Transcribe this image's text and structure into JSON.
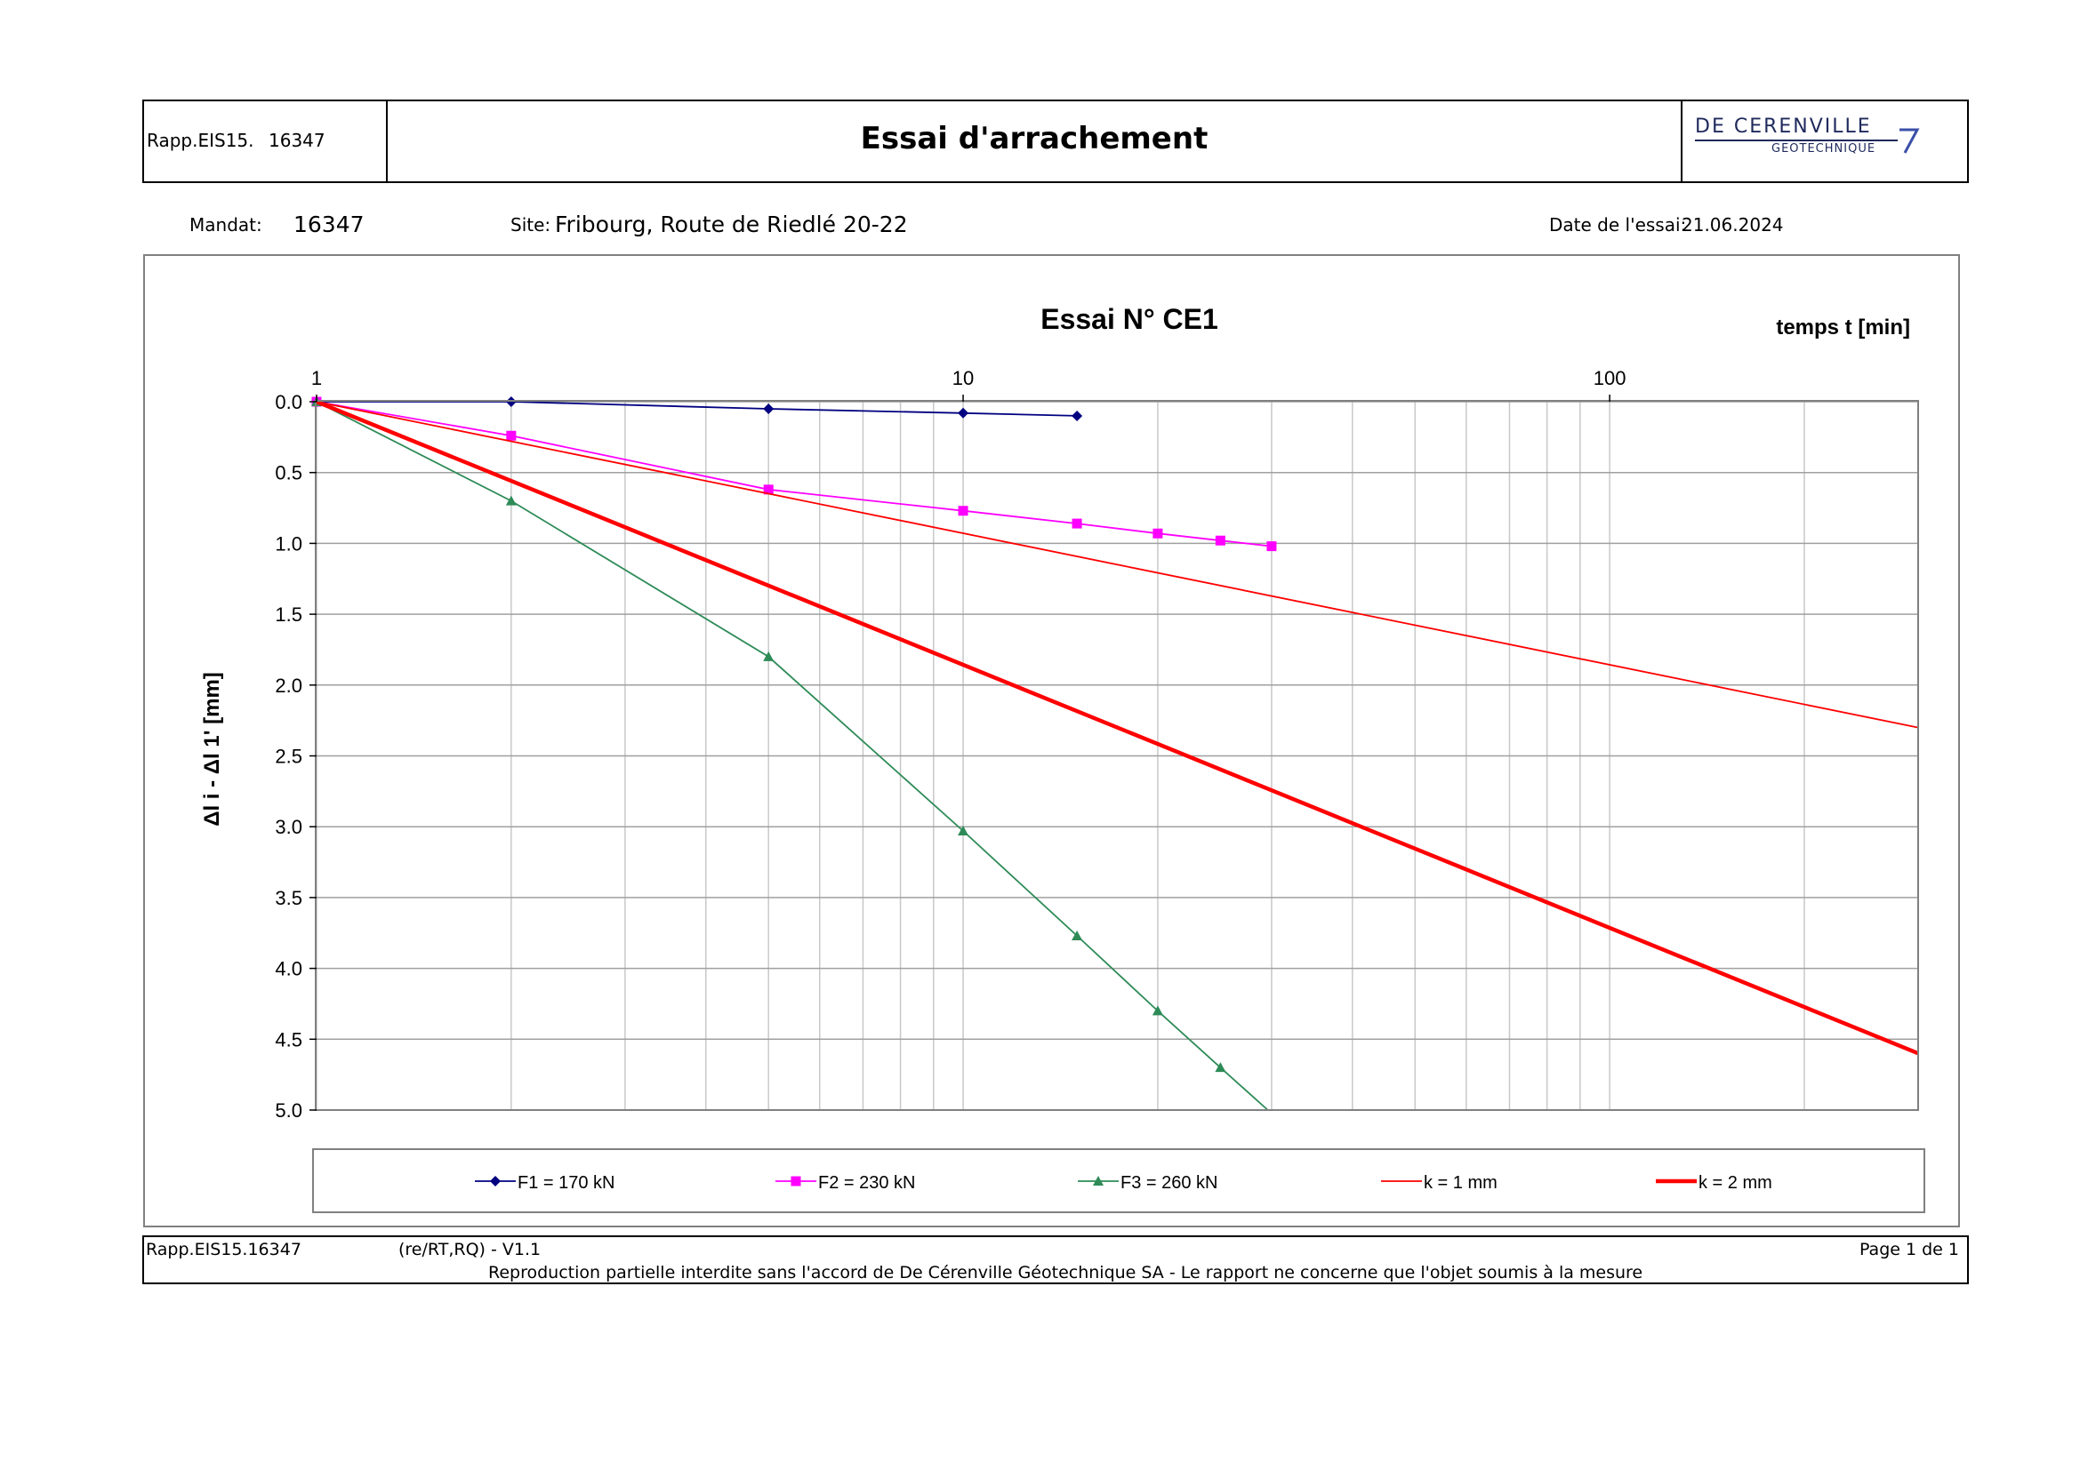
{
  "header": {
    "report_label": "Rapp.EIS15.",
    "report_number": "16347",
    "title": "Essai d'arrachement",
    "logo_line1": "DE CERENVILLE",
    "logo_line2": "GEOTECHNIQUE"
  },
  "info": {
    "mandat_label": "Mandat:",
    "mandat_value": "16347",
    "site_label": "Site:",
    "site_value": "Fribourg, Route de Riedlé 20-22",
    "date_label": "Date de l'essai:",
    "date_value": "21.06.2024"
  },
  "footer": {
    "report_id": "Rapp.EIS15.16347",
    "version": "(re/RT,RQ) - V1.1",
    "page": "Page 1 de 1",
    "disclaimer": "Reproduction partielle interdite sans l'accord de De Cérenville Géotechnique SA - Le rapport ne concerne que l'objet soumis à la mesure"
  },
  "chart_data": {
    "type": "line",
    "title": "Essai N° CE1",
    "xlabel": "temps t [min]",
    "ylabel": "Δl i - Δl 1' [mm]",
    "x_scale": "log",
    "xlim": [
      1,
      300
    ],
    "ylim": [
      0,
      5
    ],
    "y_inverted": true,
    "x_axis_position": "top",
    "x_tick_labels": [
      "1",
      "10",
      "100"
    ],
    "y_tick_labels": [
      "0.0",
      "0.5",
      "1.0",
      "1.5",
      "2.0",
      "2.5",
      "3.0",
      "3.5",
      "4.0",
      "4.5",
      "5.0"
    ],
    "grid": true,
    "legend_position": "bottom",
    "series": [
      {
        "name": "F1 = 170 kN",
        "color": "#000080",
        "marker": "diamond",
        "line_width": "thin",
        "x": [
          1,
          2,
          5,
          10,
          15
        ],
        "y": [
          0.0,
          0.0,
          0.05,
          0.08,
          0.1
        ]
      },
      {
        "name": "F2 = 230 kN",
        "color": "#FF00FF",
        "marker": "square",
        "line_width": "thin",
        "x": [
          1,
          2,
          5,
          10,
          15,
          20,
          25,
          30
        ],
        "y": [
          0.0,
          0.24,
          0.62,
          0.77,
          0.86,
          0.93,
          0.98,
          1.02
        ]
      },
      {
        "name": "F3 = 260 kN",
        "color": "#2E8B57",
        "marker": "triangle",
        "line_width": "thin",
        "x": [
          1,
          2,
          5,
          10,
          15,
          20,
          25,
          29.6
        ],
        "y": [
          0.0,
          0.7,
          1.8,
          3.03,
          3.77,
          4.3,
          4.7,
          5.0
        ]
      },
      {
        "name": "k = 1 mm",
        "color": "#FF0000",
        "marker": "none",
        "line_width": "thin",
        "x": [
          1,
          300
        ],
        "y": [
          0.0,
          2.3
        ]
      },
      {
        "name": "k = 2 mm",
        "color": "#FF0000",
        "marker": "none",
        "line_width": "thick",
        "x": [
          1,
          300
        ],
        "y": [
          0.0,
          4.6
        ]
      }
    ]
  }
}
